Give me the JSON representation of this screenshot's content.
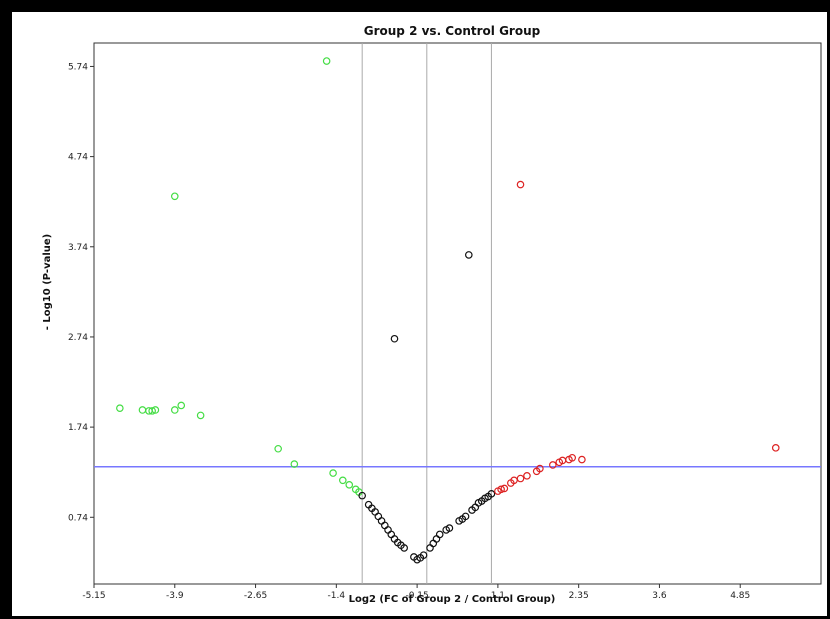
{
  "chart_data": {
    "type": "scatter",
    "title": "Group 2 vs. Control Group",
    "xlabel": "Log2 (FC of Group 2 / Control Group)",
    "ylabel": "- Log10 (P-value)",
    "xlim": [
      -5.15,
      6.1
    ],
    "ylim": [
      0.0,
      6.0
    ],
    "xticks": [
      -5.15,
      -3.9,
      -2.65,
      -1.4,
      -0.15,
      1.1,
      2.35,
      3.6,
      4.85
    ],
    "xtick_labels": [
      "-5.15",
      "-3.9",
      "-2.65",
      "-1.4",
      "-0.15",
      "1.1",
      "2.35",
      "3.6",
      "4.85"
    ],
    "yticks": [
      0.74,
      1.74,
      2.74,
      3.74,
      4.74,
      5.74
    ],
    "ytick_labels": [
      "0.74",
      "1.74",
      "2.74",
      "3.74",
      "4.74",
      "5.74"
    ],
    "grid": false,
    "vertical_lines": [
      -1.0,
      0.0,
      1.0
    ],
    "threshold_line_y": 1.3,
    "colors": {
      "down": "#44dd44",
      "neutral": "#111111",
      "up": "#dd2222",
      "threshold": "#7777ff",
      "vline": "#aaaaaa"
    },
    "series": [
      {
        "color_key": "down",
        "x": [
          -1.55,
          -3.9,
          -4.75,
          -4.4,
          -4.3,
          -4.25,
          -4.2,
          -3.9,
          -3.8,
          -3.5,
          -2.3,
          -2.05,
          -1.45,
          -1.3,
          -1.2,
          -1.1,
          -1.05
        ],
        "y": [
          5.8,
          4.3,
          1.95,
          1.93,
          1.92,
          1.92,
          1.93,
          1.93,
          1.98,
          1.87,
          1.5,
          1.33,
          1.23,
          1.15,
          1.1,
          1.05,
          1.02
        ]
      },
      {
        "color_key": "neutral",
        "x": [
          -0.5,
          0.65,
          -1.0,
          -0.9,
          -0.85,
          -0.8,
          -0.75,
          -0.7,
          -0.65,
          -0.6,
          -0.55,
          -0.5,
          -0.45,
          -0.4,
          -0.35,
          -0.2,
          -0.15,
          -0.1,
          -0.05,
          0.05,
          0.1,
          0.15,
          0.2,
          0.3,
          0.35,
          0.5,
          0.55,
          0.6,
          0.7,
          0.75,
          0.8,
          0.85,
          0.9,
          0.95,
          1.0
        ],
        "y": [
          2.72,
          3.65,
          0.98,
          0.88,
          0.84,
          0.8,
          0.75,
          0.7,
          0.65,
          0.6,
          0.55,
          0.5,
          0.46,
          0.43,
          0.4,
          0.3,
          0.27,
          0.29,
          0.32,
          0.4,
          0.45,
          0.5,
          0.55,
          0.6,
          0.62,
          0.7,
          0.72,
          0.75,
          0.82,
          0.85,
          0.9,
          0.92,
          0.95,
          0.97,
          1.0
        ]
      },
      {
        "color_key": "up",
        "x": [
          1.45,
          5.4,
          1.1,
          1.15,
          1.2,
          1.3,
          1.35,
          1.45,
          1.55,
          1.7,
          1.75,
          1.95,
          2.05,
          2.1,
          2.2,
          2.25,
          2.4
        ],
        "y": [
          4.43,
          1.51,
          1.03,
          1.05,
          1.06,
          1.12,
          1.15,
          1.17,
          1.2,
          1.25,
          1.28,
          1.32,
          1.35,
          1.37,
          1.38,
          1.4,
          1.38
        ]
      }
    ]
  }
}
